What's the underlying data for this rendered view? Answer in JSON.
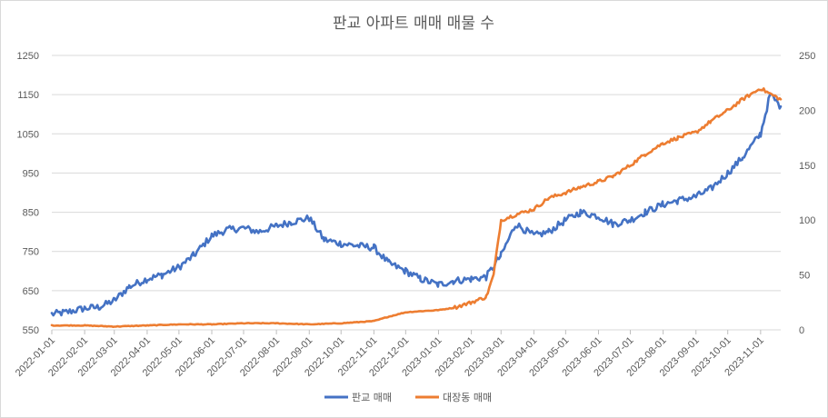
{
  "chart_data": {
    "type": "line",
    "title": "판교 아파트 매매 매물 수",
    "x_tick_labels": [
      "2022-01-01",
      "2022-02-01",
      "2022-03-01",
      "2022-04-01",
      "2022-05-01",
      "2022-06-01",
      "2022-07-01",
      "2022-08-01",
      "2022-09-01",
      "2022-10-01",
      "2022-11-01",
      "2022-12-01",
      "2023-01-01",
      "2023-02-01",
      "2023-03-01",
      "2023-04-01",
      "2023-05-01",
      "2023-06-01",
      "2023-07-01",
      "2023-08-01",
      "2023-09-01",
      "2023-10-01",
      "2023-11-01"
    ],
    "x_range": [
      "2022-01-01",
      "2023-11-20"
    ],
    "left_axis": {
      "ticks": [
        "550",
        "650",
        "750",
        "850",
        "950",
        "1050",
        "1150",
        "1250"
      ],
      "range": [
        550,
        1250
      ]
    },
    "right_axis": {
      "ticks": [
        "0",
        "50",
        "100",
        "150",
        "200",
        "250"
      ],
      "range": [
        0,
        250
      ]
    },
    "gridlines": true,
    "legend_position": "bottom",
    "series": [
      {
        "name": "판교 매매",
        "axis": "left",
        "color": "#4472C4",
        "x": [
          "2022-01-01",
          "2022-01-15",
          "2022-02-01",
          "2022-02-15",
          "2022-03-01",
          "2022-03-15",
          "2022-04-01",
          "2022-04-15",
          "2022-05-01",
          "2022-05-15",
          "2022-06-01",
          "2022-06-15",
          "2022-07-01",
          "2022-07-15",
          "2022-08-01",
          "2022-08-15",
          "2022-09-01",
          "2022-09-15",
          "2022-10-01",
          "2022-10-15",
          "2022-11-01",
          "2022-11-15",
          "2022-12-01",
          "2022-12-15",
          "2023-01-01",
          "2023-01-15",
          "2023-02-01",
          "2023-02-15",
          "2023-03-01",
          "2023-03-15",
          "2023-04-01",
          "2023-04-15",
          "2023-05-01",
          "2023-05-15",
          "2023-06-01",
          "2023-06-15",
          "2023-07-01",
          "2023-07-15",
          "2023-08-01",
          "2023-08-15",
          "2023-09-01",
          "2023-09-15",
          "2023-10-01",
          "2023-10-15",
          "2023-11-01",
          "2023-11-10",
          "2023-11-20"
        ],
        "values": [
          590,
          595,
          605,
          608,
          625,
          660,
          680,
          690,
          710,
          740,
          790,
          805,
          810,
          800,
          815,
          825,
          835,
          780,
          770,
          765,
          760,
          720,
          700,
          680,
          665,
          675,
          680,
          685,
          740,
          820,
          790,
          800,
          830,
          850,
          840,
          820,
          830,
          850,
          870,
          880,
          890,
          910,
          950,
          990,
          1050,
          1150,
          1120
        ]
      },
      {
        "name": "대장동 매매",
        "axis": "right",
        "color": "#ED7D31",
        "x": [
          "2022-01-01",
          "2022-02-01",
          "2022-03-01",
          "2022-04-01",
          "2022-05-01",
          "2022-06-01",
          "2022-07-01",
          "2022-08-01",
          "2022-09-01",
          "2022-10-01",
          "2022-11-01",
          "2022-11-15",
          "2022-12-01",
          "2022-12-15",
          "2023-01-01",
          "2023-01-15",
          "2023-02-01",
          "2023-02-15",
          "2023-02-22",
          "2023-03-01",
          "2023-03-15",
          "2023-04-01",
          "2023-04-15",
          "2023-05-01",
          "2023-05-15",
          "2023-06-01",
          "2023-06-15",
          "2023-07-01",
          "2023-07-15",
          "2023-08-01",
          "2023-08-15",
          "2023-09-01",
          "2023-09-15",
          "2023-10-01",
          "2023-10-15",
          "2023-11-01",
          "2023-11-10",
          "2023-11-20"
        ],
        "values": [
          4,
          4,
          3,
          4,
          5,
          5,
          6,
          6,
          5,
          6,
          8,
          12,
          16,
          17,
          18,
          20,
          25,
          30,
          50,
          100,
          105,
          110,
          120,
          125,
          130,
          135,
          140,
          150,
          160,
          170,
          175,
          180,
          190,
          200,
          210,
          220,
          215,
          210
        ]
      }
    ]
  }
}
